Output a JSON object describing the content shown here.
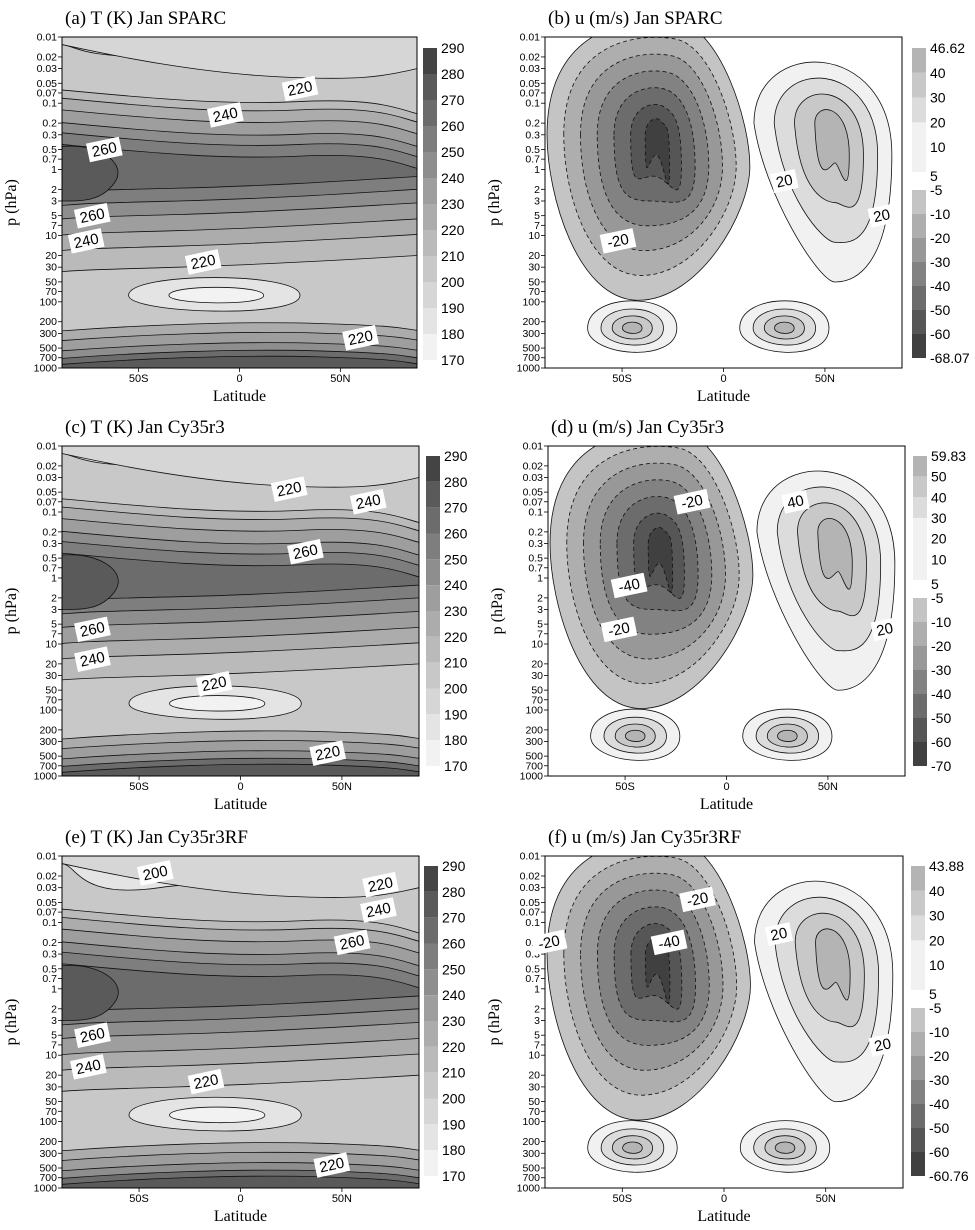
{
  "colors": {
    "temperature_ramp": [
      "#f2f2f2",
      "#e4e4e4",
      "#d6d6d6",
      "#c8c8c8",
      "#bababa",
      "#acacac",
      "#9e9e9e",
      "#8e8e8e",
      "#7e7e7e",
      "#6c6c6c",
      "#5a5a5a",
      "#444444"
    ],
    "wind_positive": [
      "#f1f1f1",
      "#dcdcdc",
      "#c8c8c8",
      "#b4b4b4"
    ],
    "wind_negative": [
      "#c4c4c4",
      "#aeaeae",
      "#989898",
      "#828282",
      "#6c6c6c",
      "#565656",
      "#404040"
    ]
  },
  "chart_data": [
    {
      "id": "a",
      "type": "contour",
      "title": "(a) T (K) Jan SPARC",
      "xlabel": "Latitude",
      "ylabel": "p (hPa)",
      "x_ticks": [
        "50S",
        "0",
        "50N"
      ],
      "y_ticks": [
        "0.01",
        "0.02",
        "0.03",
        "0.05",
        "0.07",
        "0.1",
        "0.2",
        "0.3",
        "0.5",
        "0.7",
        "1",
        "2",
        "3",
        "5",
        "7",
        "10",
        "20",
        "30",
        "50",
        "70",
        "100",
        "200",
        "300",
        "500",
        "700",
        "1000"
      ],
      "colorbar": [
        "290",
        "280",
        "270",
        "260",
        "250",
        "240",
        "230",
        "220",
        "210",
        "200",
        "190",
        "180",
        "170"
      ],
      "contour_labels": [
        {
          "text": "220",
          "lat": 30,
          "p": 0.06
        },
        {
          "text": "240",
          "lat": -7,
          "p": 0.15
        },
        {
          "text": "260",
          "lat": -67,
          "p": 0.5
        },
        {
          "text": "260",
          "lat": -73,
          "p": 5
        },
        {
          "text": "240",
          "lat": -76,
          "p": 12
        },
        {
          "text": "220",
          "lat": -18,
          "p": 25
        },
        {
          "text": "220",
          "lat": 60,
          "p": 350
        }
      ]
    },
    {
      "id": "b",
      "type": "contour",
      "title": "(b) u (m/s) Jan SPARC",
      "xlabel": "Latitude",
      "ylabel": "p (hPa)",
      "x_ticks": [
        "50S",
        "0",
        "50N"
      ],
      "y_ticks": [
        "0.01",
        "0.02",
        "0.03",
        "0.05",
        "0.07",
        "0.1",
        "0.2",
        "0.3",
        "0.5",
        "0.7",
        "1",
        "2",
        "3",
        "5",
        "7",
        "10",
        "20",
        "30",
        "50",
        "70",
        "100",
        "200",
        "300",
        "500",
        "700",
        "1000"
      ],
      "colorbar": [
        "46.62",
        "40",
        "30",
        "20",
        "10",
        "5",
        "-5",
        "-10",
        "-20",
        "-30",
        "-40",
        "-50",
        "-60",
        "-68.07"
      ],
      "contour_labels": [
        {
          "text": "-20",
          "lat": -52,
          "p": 12
        },
        {
          "text": "20",
          "lat": 30,
          "p": 1.5
        },
        {
          "text": "20",
          "lat": 78,
          "p": 5
        }
      ]
    },
    {
      "id": "c",
      "type": "contour",
      "title": "(c) T (K) Jan Cy35r3",
      "xlabel": "Latitude",
      "ylabel": "p (hPa)",
      "x_ticks": [
        "50S",
        "0",
        "50N"
      ],
      "y_ticks": [
        "0.01",
        "0.02",
        "0.03",
        "0.05",
        "0.07",
        "0.1",
        "0.2",
        "0.3",
        "0.5",
        "0.7",
        "1",
        "2",
        "3",
        "5",
        "7",
        "10",
        "20",
        "30",
        "50",
        "70",
        "100",
        "200",
        "300",
        "500",
        "700",
        "1000"
      ],
      "colorbar": [
        "290",
        "280",
        "270",
        "260",
        "250",
        "240",
        "230",
        "220",
        "210",
        "200",
        "190",
        "180",
        "170"
      ],
      "contour_labels": [
        {
          "text": "220",
          "lat": 24,
          "p": 0.045
        },
        {
          "text": "240",
          "lat": 63,
          "p": 0.07
        },
        {
          "text": "260",
          "lat": 32,
          "p": 0.4
        },
        {
          "text": "260",
          "lat": -73,
          "p": 6
        },
        {
          "text": "240",
          "lat": -73,
          "p": 17
        },
        {
          "text": "220",
          "lat": -13,
          "p": 40
        },
        {
          "text": "220",
          "lat": 43,
          "p": 450
        }
      ]
    },
    {
      "id": "d",
      "type": "contour",
      "title": "(d) u (m/s) Jan Cy35r3",
      "xlabel": "Latitude",
      "ylabel": "p (hPa)",
      "x_ticks": [
        "50S",
        "0",
        "50N"
      ],
      "y_ticks": [
        "0.01",
        "0.02",
        "0.03",
        "0.05",
        "0.07",
        "0.1",
        "0.2",
        "0.3",
        "0.5",
        "0.7",
        "1",
        "2",
        "3",
        "5",
        "7",
        "10",
        "20",
        "30",
        "50",
        "70",
        "100",
        "200",
        "300",
        "500",
        "700",
        "1000"
      ],
      "colorbar": [
        "59.83",
        "50",
        "40",
        "30",
        "20",
        "10",
        "5",
        "-5",
        "-10",
        "-20",
        "-30",
        "-40",
        "-50",
        "-60",
        "-70"
      ],
      "contour_labels": [
        {
          "text": "-20",
          "lat": -17,
          "p": 0.07
        },
        {
          "text": "-40",
          "lat": -48,
          "p": 1.3
        },
        {
          "text": "-20",
          "lat": -53,
          "p": 6
        },
        {
          "text": "40",
          "lat": 34,
          "p": 0.07
        },
        {
          "text": "20",
          "lat": 78,
          "p": 6
        }
      ]
    },
    {
      "id": "e",
      "type": "contour",
      "title": "(e) T (K) Jan Cy35r3RF",
      "xlabel": "Latitude",
      "ylabel": "p (hPa)",
      "x_ticks": [
        "50S",
        "0",
        "50N"
      ],
      "y_ticks": [
        "0.01",
        "0.02",
        "0.03",
        "0.05",
        "0.07",
        "0.1",
        "0.2",
        "0.3",
        "0.5",
        "0.7",
        "1",
        "2",
        "3",
        "5",
        "7",
        "10",
        "20",
        "30",
        "50",
        "70",
        "100",
        "200",
        "300",
        "500",
        "700",
        "1000"
      ],
      "colorbar": [
        "290",
        "280",
        "270",
        "260",
        "250",
        "240",
        "230",
        "220",
        "210",
        "200",
        "190",
        "180",
        "170"
      ],
      "contour_labels": [
        {
          "text": "200",
          "lat": -42,
          "p": 0.018
        },
        {
          "text": "220",
          "lat": 69,
          "p": 0.027
        },
        {
          "text": "240",
          "lat": 68,
          "p": 0.065
        },
        {
          "text": "260",
          "lat": 55,
          "p": 0.2
        },
        {
          "text": "260",
          "lat": -73,
          "p": 5
        },
        {
          "text": "240",
          "lat": -75,
          "p": 15
        },
        {
          "text": "220",
          "lat": -17,
          "p": 25
        },
        {
          "text": "220",
          "lat": 45,
          "p": 450
        }
      ]
    },
    {
      "id": "f",
      "type": "contour",
      "title": "(f) u (m/s) Jan Cy35r3RF",
      "xlabel": "Latitude",
      "ylabel": "p (hPa)",
      "x_ticks": [
        "50S",
        "0",
        "50N"
      ],
      "y_ticks": [
        "0.01",
        "0.02",
        "0.03",
        "0.05",
        "0.07",
        "0.1",
        "0.2",
        "0.3",
        "0.5",
        "0.7",
        "1",
        "2",
        "3",
        "5",
        "7",
        "10",
        "20",
        "30",
        "50",
        "70",
        "100",
        "200",
        "300",
        "500",
        "700",
        "1000"
      ],
      "colorbar": [
        "43.88",
        "40",
        "30",
        "20",
        "10",
        "5",
        "-5",
        "-10",
        "-20",
        "-30",
        "-40",
        "-50",
        "-60",
        "-60.76"
      ],
      "contour_labels": [
        {
          "text": "-20",
          "lat": -86,
          "p": 0.2
        },
        {
          "text": "-20",
          "lat": -13,
          "p": 0.045
        },
        {
          "text": "-40",
          "lat": -27,
          "p": 0.2
        },
        {
          "text": "20",
          "lat": 27,
          "p": 0.15
        },
        {
          "text": "20",
          "lat": 78,
          "p": 7
        }
      ]
    }
  ]
}
